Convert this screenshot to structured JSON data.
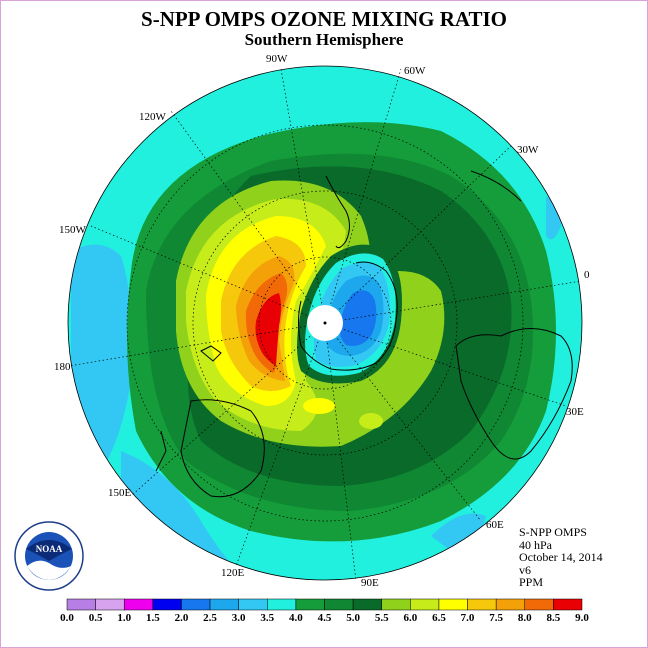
{
  "title": "S-NPP OMPS OZONE MIXING RATIO",
  "subtitle": "Southern Hemisphere",
  "meridian_labels": [
    "90W",
    "60W",
    "30W",
    "0",
    "30E",
    "60E",
    "90E",
    "120E",
    "150E",
    "180",
    "150W",
    "120W"
  ],
  "info": {
    "instrument": "S-NPP OMPS",
    "level": "40 hPa",
    "date": "October 14, 2014",
    "version": "v6",
    "units": "PPM"
  },
  "logo": {
    "text": "NOAA",
    "ring_text": "NATIONAL OCEANIC AND ATMOSPHERIC ADMINISTRATION · U.S. DEPARTMENT OF COMMERCE"
  },
  "colorbar": {
    "tick_labels": [
      "0.0",
      "0.5",
      "1.0",
      "1.5",
      "2.0",
      "2.5",
      "3.0",
      "3.5",
      "4.0",
      "4.5",
      "5.0",
      "5.5",
      "6.0",
      "6.5",
      "7.0",
      "7.5",
      "8.0",
      "8.5",
      "9.0"
    ],
    "colors": [
      "#b77ee6",
      "#d7a3ee",
      "#ee00ee",
      "#0000f0",
      "#1677ee",
      "#1da8ee",
      "#33c8f4",
      "#22f0de",
      "#149d3a",
      "#0f8733",
      "#0a6a2a",
      "#8fd11b",
      "#c6ec19",
      "#ffff00",
      "#f6c80c",
      "#f4a008",
      "#f26a08",
      "#e80004",
      "#8b5a33"
    ]
  }
}
